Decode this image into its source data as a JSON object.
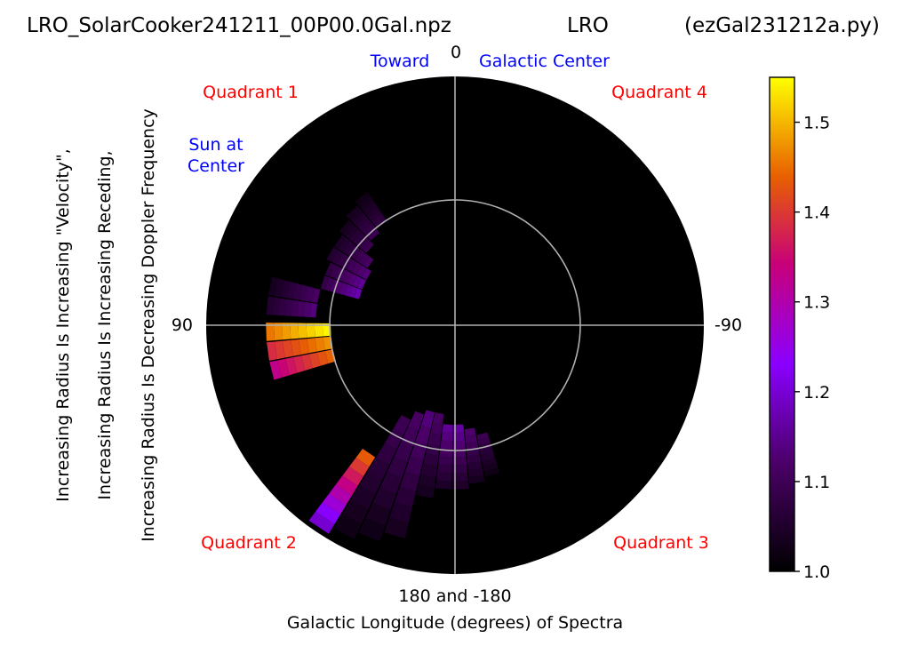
{
  "header": {
    "file": "LRO_SolarCooker241211_00P00.0Gal.npz",
    "station": "LRO",
    "program": "(ezGal231212a.py)"
  },
  "polar_labels": {
    "top": "0",
    "left": "90",
    "right": "-90",
    "bottom": "180 and -180"
  },
  "annotations": {
    "toward": "Toward",
    "galactic_center": "Galactic Center",
    "sun_line1": "Sun at",
    "sun_line2": "Center",
    "q1": "Quadrant 1",
    "q2": "Quadrant 2",
    "q3": "Quadrant 3",
    "q4": "Quadrant 4"
  },
  "ylabel_lines": [
    "Increasing Radius Is Increasing \"Velocity\",",
    "Increasing Radius Is Increasing Receding,",
    "Increasing Radius Is Decreasing Doppler Frequency"
  ],
  "xlabel": "Galactic Longitude (degrees) of Spectra",
  "colors": {
    "annotation_blue": "#0000ff",
    "annotation_red": "#ff0000",
    "disk": "#000000",
    "grid": "#b0b0b0"
  },
  "chart_data": {
    "type": "heatmap",
    "projection": "polar",
    "colormap": "gnuplot",
    "colorbar": {
      "min": 1.0,
      "max": 1.55,
      "ticks": [
        "1.0",
        "1.1",
        "1.2",
        "1.3",
        "1.4",
        "1.5"
      ]
    },
    "theta_zero": "top",
    "theta_direction": "counterclockwise",
    "inner_circle_fraction": 0.51,
    "wedges": [
      {
        "lon": 92,
        "r0": 0.5,
        "r1": 0.76,
        "v0": 1.55,
        "v1": 1.45
      },
      {
        "lon": 98,
        "r0": 0.5,
        "r1": 0.76,
        "v0": 1.48,
        "v1": 1.38
      },
      {
        "lon": 104,
        "r0": 0.5,
        "r1": 0.76,
        "v0": 1.45,
        "v1": 1.32
      },
      {
        "lon": 84,
        "r0": 0.56,
        "r1": 0.76,
        "v0": 1.14,
        "v1": 1.05
      },
      {
        "lon": 78,
        "r0": 0.56,
        "r1": 0.76,
        "v0": 1.12,
        "v1": 1.03
      },
      {
        "lon": 72,
        "r0": 0.4,
        "r1": 0.56,
        "v0": 1.18,
        "v1": 1.08
      },
      {
        "lon": 66,
        "r0": 0.4,
        "r1": 0.56,
        "v0": 1.16,
        "v1": 1.07
      },
      {
        "lon": 60,
        "r0": 0.4,
        "r1": 0.58,
        "v0": 1.14,
        "v1": 1.05
      },
      {
        "lon": 54,
        "r0": 0.42,
        "r1": 0.58,
        "v0": 1.12,
        "v1": 1.04
      },
      {
        "lon": 48,
        "r0": 0.46,
        "r1": 0.6,
        "v0": 1.1,
        "v1": 1.03
      },
      {
        "lon": 42,
        "r0": 0.48,
        "r1": 0.62,
        "v0": 1.1,
        "v1": 1.03
      },
      {
        "lon": 36,
        "r0": 0.5,
        "r1": 0.64,
        "v0": 1.08,
        "v1": 1.02
      },
      {
        "lon": 146,
        "r0": 0.62,
        "r1": 0.98,
        "v0": 1.45,
        "v1": 1.18
      },
      {
        "lon": 152,
        "r0": 0.42,
        "r1": 0.95,
        "v0": 1.1,
        "v1": 1.02
      },
      {
        "lon": 158,
        "r0": 0.38,
        "r1": 0.92,
        "v0": 1.12,
        "v1": 1.02
      },
      {
        "lon": 164,
        "r0": 0.36,
        "r1": 0.88,
        "v0": 1.14,
        "v1": 1.03
      },
      {
        "lon": 170,
        "r0": 0.36,
        "r1": 0.7,
        "v0": 1.12,
        "v1": 1.03
      },
      {
        "lon": 176,
        "r0": 0.4,
        "r1": 0.66,
        "v0": 1.16,
        "v1": 1.04
      },
      {
        "lon": -178,
        "r0": 0.4,
        "r1": 0.66,
        "v0": 1.17,
        "v1": 1.04
      },
      {
        "lon": -172,
        "r0": 0.42,
        "r1": 0.64,
        "v0": 1.13,
        "v1": 1.03
      },
      {
        "lon": -166,
        "r0": 0.45,
        "r1": 0.62,
        "v0": 1.1,
        "v1": 1.02
      }
    ]
  }
}
